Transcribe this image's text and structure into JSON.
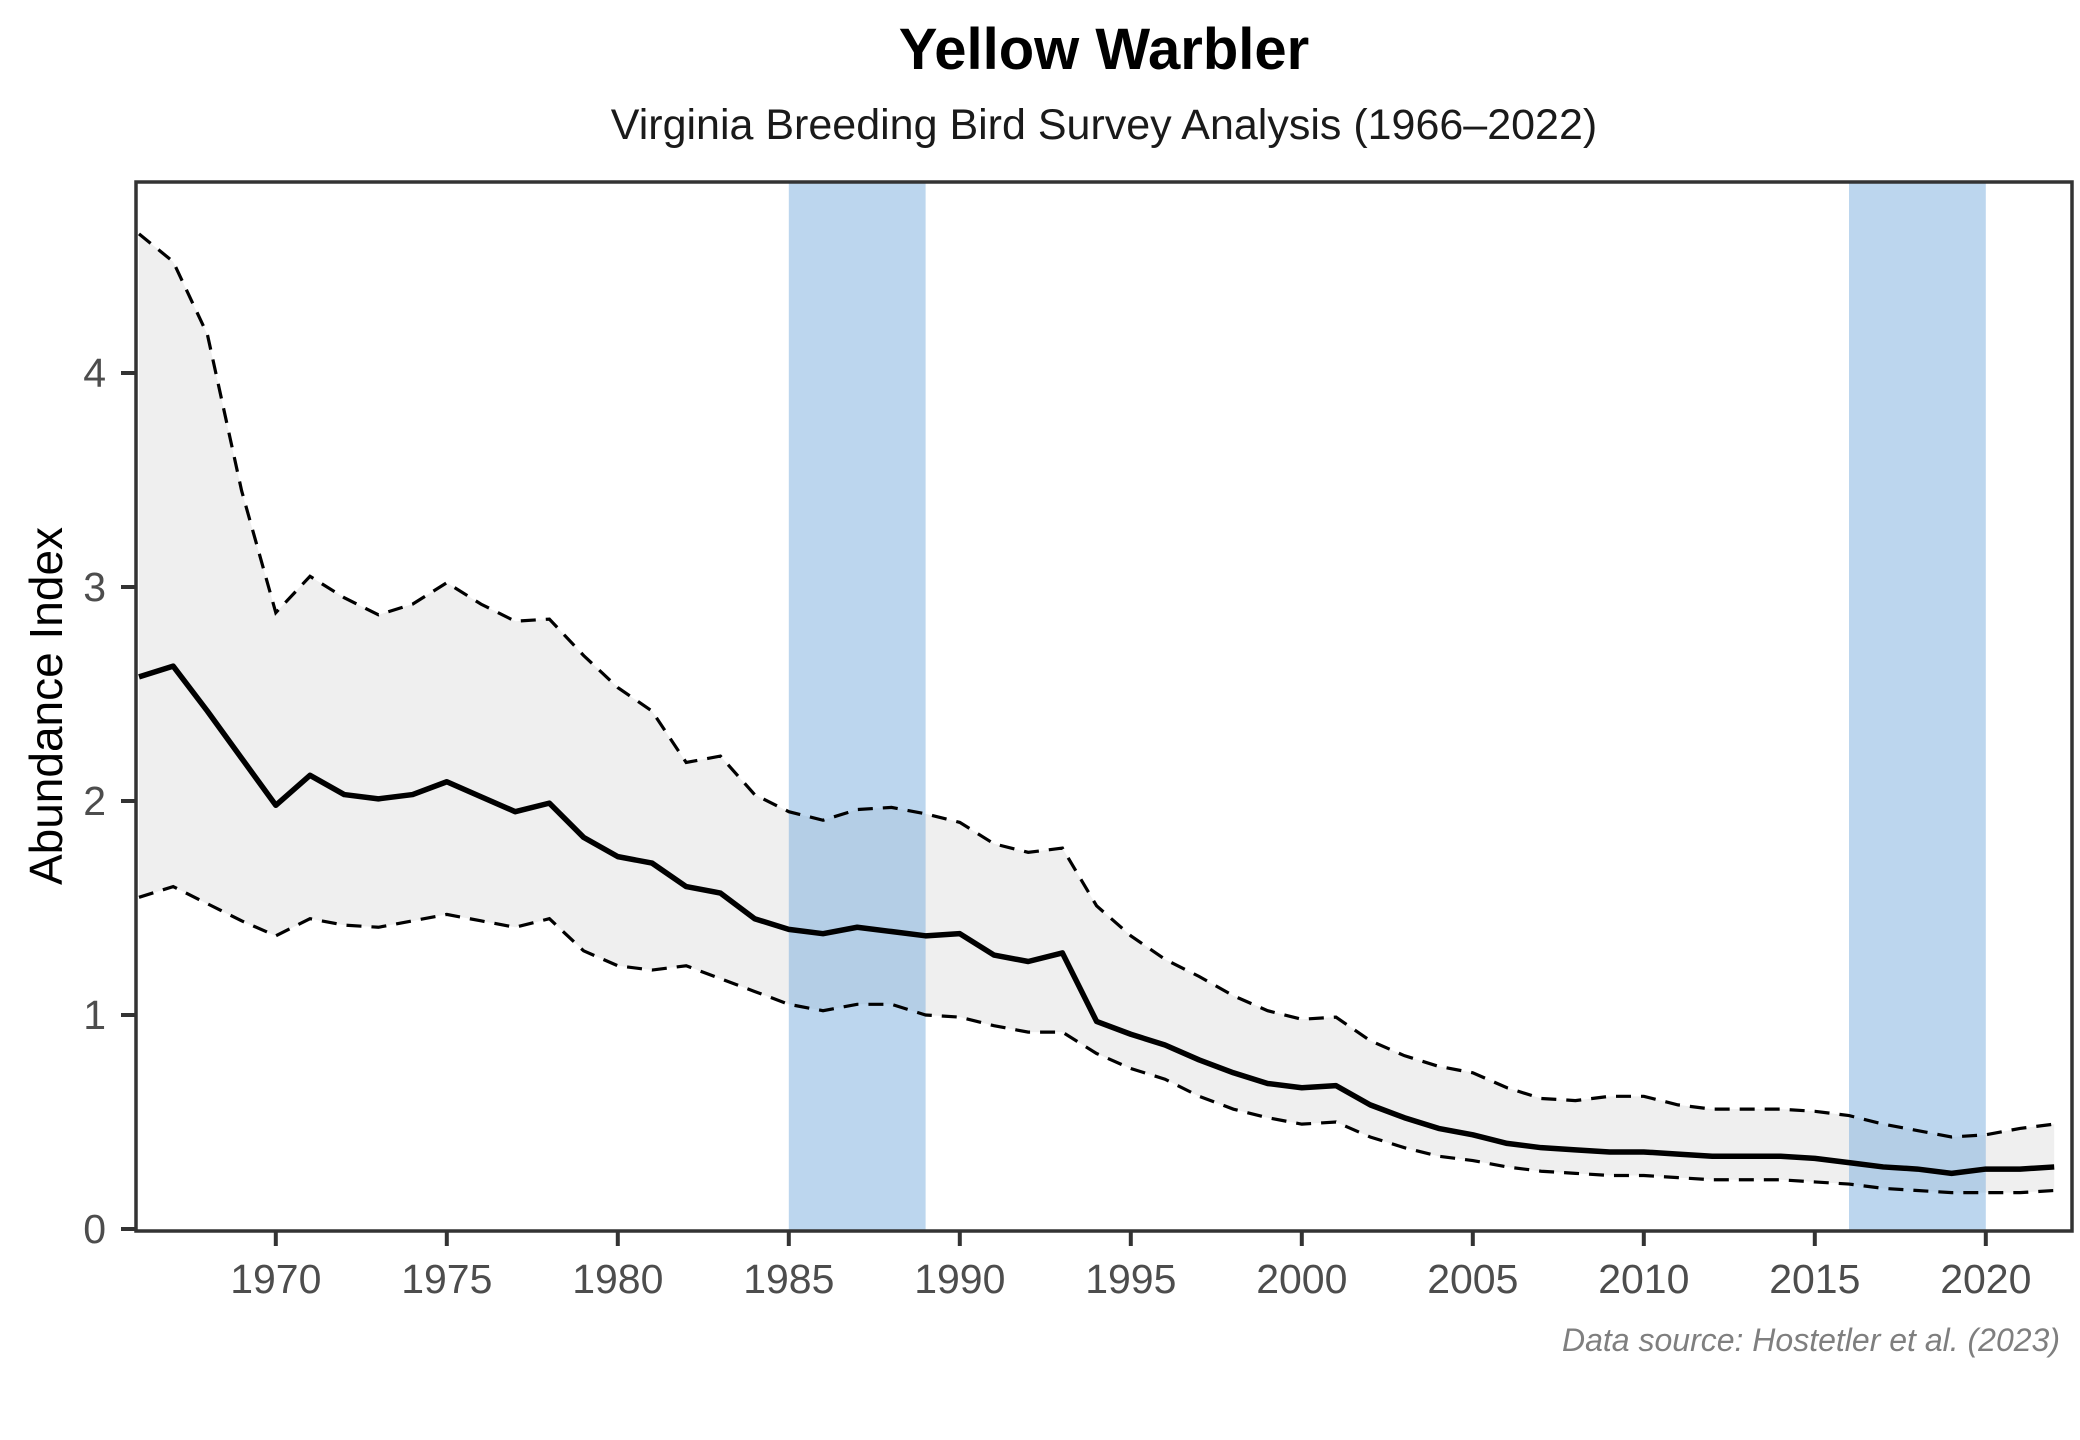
{
  "title": "Yellow Warbler",
  "subtitle": "Virginia Breeding Bird Survey Analysis (1966–2022)",
  "caption": "Data source: Hostetler et al. (2023)",
  "y_axis_label": "Abundance Index",
  "colors": {
    "axis": "#333333",
    "tick_text": "#4d4d4d",
    "ribbon_fill": "#efefef",
    "highlight_band": "rgba(121,173,221,0.5)",
    "index_line": "#000000",
    "ci_line": "#000000",
    "caption_text": "#7f7f7f"
  },
  "chart_data": {
    "type": "line",
    "title": "Yellow Warbler",
    "subtitle": "Virginia Breeding Bird Survey Analysis (1966–2022)",
    "xlabel": "",
    "ylabel": "Abundance Index",
    "xlim": [
      1966,
      2022
    ],
    "ylim": [
      0,
      4.9
    ],
    "grid": false,
    "legend": "none",
    "x_ticks": [
      1970,
      1975,
      1980,
      1985,
      1990,
      1995,
      2000,
      2005,
      2010,
      2015,
      2020
    ],
    "y_ticks": [
      0,
      1,
      2,
      3,
      4
    ],
    "highlight_bands": [
      {
        "from": 1985,
        "to": 1989
      },
      {
        "from": 2016,
        "to": 2020
      }
    ],
    "x": [
      1966,
      1967,
      1968,
      1969,
      1970,
      1971,
      1972,
      1973,
      1974,
      1975,
      1976,
      1977,
      1978,
      1979,
      1980,
      1981,
      1982,
      1983,
      1984,
      1985,
      1986,
      1987,
      1988,
      1989,
      1990,
      1991,
      1992,
      1993,
      1994,
      1995,
      1996,
      1997,
      1998,
      1999,
      2000,
      2001,
      2002,
      2003,
      2004,
      2005,
      2006,
      2007,
      2008,
      2009,
      2010,
      2011,
      2012,
      2013,
      2014,
      2015,
      2016,
      2017,
      2018,
      2019,
      2020,
      2021,
      2022
    ],
    "series": [
      {
        "name": "Abundance index",
        "style": "solid",
        "values": [
          2.58,
          2.63,
          2.42,
          2.2,
          1.98,
          2.12,
          2.03,
          2.01,
          2.03,
          2.09,
          2.02,
          1.95,
          1.99,
          1.83,
          1.74,
          1.71,
          1.6,
          1.57,
          1.45,
          1.4,
          1.38,
          1.41,
          1.39,
          1.37,
          1.38,
          1.28,
          1.25,
          1.29,
          0.97,
          0.91,
          0.86,
          0.79,
          0.73,
          0.68,
          0.66,
          0.67,
          0.58,
          0.52,
          0.47,
          0.44,
          0.4,
          0.38,
          0.37,
          0.36,
          0.36,
          0.35,
          0.34,
          0.34,
          0.34,
          0.33,
          0.31,
          0.29,
          0.28,
          0.26,
          0.28,
          0.28,
          0.29
        ]
      },
      {
        "name": "Upper 95% CI",
        "style": "dashed",
        "values": [
          4.65,
          4.52,
          4.18,
          3.45,
          2.88,
          3.05,
          2.95,
          2.87,
          2.92,
          3.02,
          2.92,
          2.84,
          2.85,
          2.68,
          2.53,
          2.42,
          2.18,
          2.21,
          2.03,
          1.95,
          1.91,
          1.96,
          1.97,
          1.94,
          1.9,
          1.8,
          1.76,
          1.78,
          1.51,
          1.37,
          1.26,
          1.18,
          1.09,
          1.02,
          0.98,
          0.99,
          0.88,
          0.81,
          0.76,
          0.73,
          0.66,
          0.61,
          0.6,
          0.62,
          0.62,
          0.58,
          0.56,
          0.56,
          0.56,
          0.55,
          0.53,
          0.49,
          0.46,
          0.43,
          0.44,
          0.47,
          0.49
        ]
      },
      {
        "name": "Lower 95% CI",
        "style": "dashed",
        "values": [
          1.55,
          1.6,
          1.52,
          1.44,
          1.37,
          1.45,
          1.42,
          1.41,
          1.44,
          1.47,
          1.44,
          1.41,
          1.45,
          1.3,
          1.23,
          1.21,
          1.23,
          1.17,
          1.11,
          1.05,
          1.02,
          1.05,
          1.05,
          1.0,
          0.99,
          0.95,
          0.92,
          0.92,
          0.82,
          0.75,
          0.7,
          0.62,
          0.56,
          0.52,
          0.49,
          0.5,
          0.43,
          0.38,
          0.34,
          0.32,
          0.29,
          0.27,
          0.26,
          0.25,
          0.25,
          0.24,
          0.23,
          0.23,
          0.23,
          0.22,
          0.21,
          0.19,
          0.18,
          0.17,
          0.17,
          0.17,
          0.18
        ]
      }
    ]
  }
}
